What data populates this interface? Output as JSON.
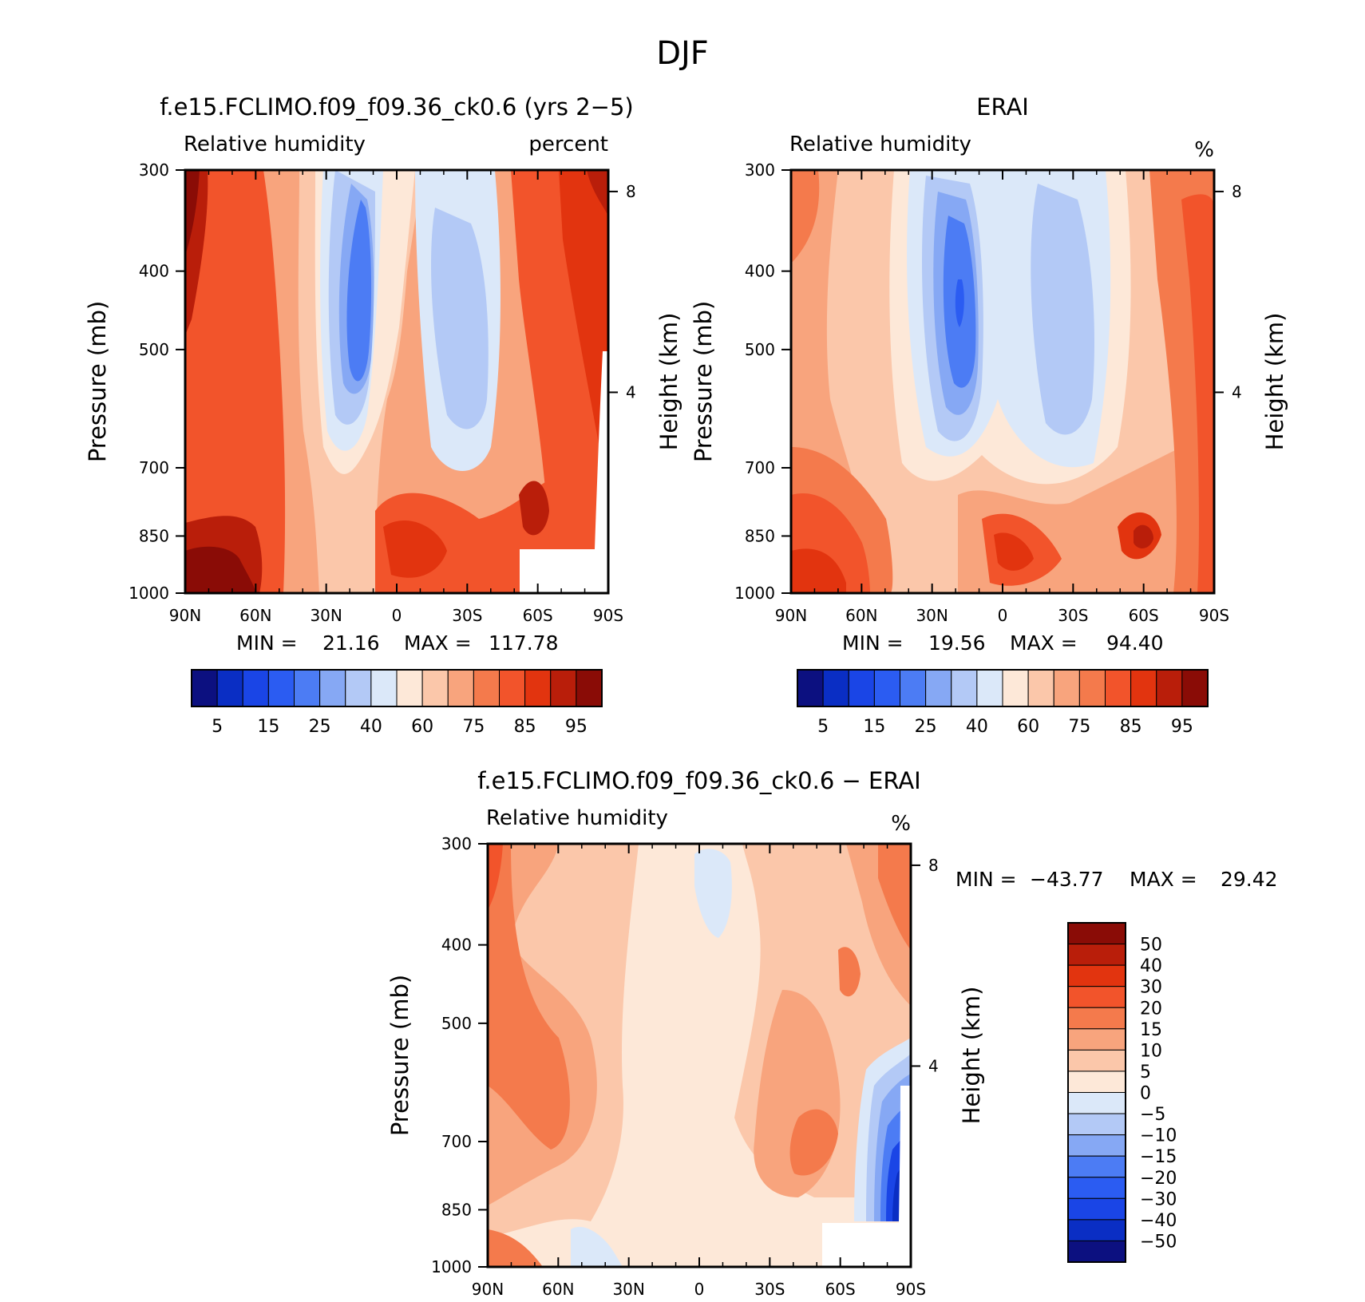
{
  "figure": {
    "title": "DJF"
  },
  "colors": {
    "rh_levels": [
      "#0c1080",
      "#0a2ec4",
      "#1a45e6",
      "#2b5cf2",
      "#4c7cf4",
      "#86a8f4",
      "#b3c9f6",
      "#dbe8f9",
      "#fde8d8",
      "#fbc7aa",
      "#f8a47d",
      "#f47a4c",
      "#f2542b",
      "#e2340f",
      "#b91e0a",
      "#8a0c06"
    ],
    "diff_levels": [
      "#0c1080",
      "#0a2ec4",
      "#1a45e6",
      "#2b5cf2",
      "#4c7cf4",
      "#86a8f4",
      "#b3c9f6",
      "#dbe8f9",
      "#fde8d8",
      "#fbc7aa",
      "#f8a47d",
      "#f47a4c",
      "#f2542b",
      "#e2340f",
      "#b91e0a",
      "#8a0c06"
    ]
  },
  "chart_data": [
    {
      "type": "heatmap",
      "title": "f.e15.FCLIMO.f09_f09.36_ck0.6 (yrs 2−5)",
      "subtitle_left": "Relative humidity",
      "subtitle_right": "percent",
      "ylabel": "Pressure (mb)",
      "ylabel_right": "Height (km)",
      "x_ticks": [
        "90N",
        "60N",
        "30N",
        "0",
        "30S",
        "60S",
        "90S"
      ],
      "y_ticks": [
        "300",
        "400",
        "500",
        "700",
        "850",
        "1000"
      ],
      "y_right_ticks": [
        "8",
        "4"
      ],
      "xlim": [
        -90,
        90
      ],
      "ylim": [
        1000,
        300
      ],
      "y_log": true,
      "stats": {
        "min_label": "MIN =",
        "min": "21.16",
        "max_label": "MAX =",
        "max": "117.78"
      },
      "colorbar": {
        "labels": [
          "5",
          "15",
          "25",
          "40",
          "60",
          "75",
          "85",
          "95"
        ]
      },
      "summary": "Moist (>90%) near poles and boundary layer; dry (25-40%) subtropical minima near 20N and 20S at 500 mb."
    },
    {
      "type": "heatmap",
      "title": "ERAI",
      "subtitle_left": "Relative humidity",
      "subtitle_right": "%",
      "ylabel": "Pressure (mb)",
      "ylabel_right": "Height (km)",
      "x_ticks": [
        "90N",
        "60N",
        "30N",
        "0",
        "30S",
        "60S",
        "90S"
      ],
      "y_ticks": [
        "300",
        "400",
        "500",
        "700",
        "850",
        "1000"
      ],
      "y_right_ticks": [
        "8",
        "4"
      ],
      "xlim": [
        -90,
        90
      ],
      "ylim": [
        1000,
        300
      ],
      "y_log": true,
      "stats": {
        "min_label": "MIN =",
        "min": "19.56",
        "max_label": "MAX =",
        "max": "94.40"
      },
      "colorbar": {
        "labels": [
          "5",
          "15",
          "25",
          "40",
          "60",
          "75",
          "85",
          "95"
        ]
      },
      "summary": "Driest (~20-25%) near 20N at 500 mb and ~30S; moist boundary layer near 10S and 60S."
    },
    {
      "type": "heatmap",
      "title": "f.e15.FCLIMO.f09_f09.36_ck0.6 − ERAI",
      "subtitle_left": "Relative humidity",
      "subtitle_right": "%",
      "ylabel": "Pressure (mb)",
      "ylabel_right": "Height (km)",
      "x_ticks": [
        "90N",
        "60N",
        "30N",
        "0",
        "30S",
        "60S",
        "90S"
      ],
      "y_ticks": [
        "300",
        "400",
        "500",
        "700",
        "850",
        "1000"
      ],
      "y_right_ticks": [
        "8",
        "4"
      ],
      "xlim": [
        -90,
        90
      ],
      "ylim": [
        1000,
        300
      ],
      "y_log": true,
      "stats": {
        "min_label": "MIN =",
        "min": "−43.77",
        "max_label": "MAX =",
        "max": "29.42"
      },
      "colorbar": {
        "labels": [
          "50",
          "40",
          "30",
          "20",
          "15",
          "10",
          "5",
          "0",
          "−5",
          "−10",
          "−15",
          "−20",
          "−30",
          "−40",
          "−50"
        ]
      },
      "summary": "Mostly positive (5-20%) differences; strong negative (down to -40) near 80S in the lower troposphere."
    }
  ]
}
